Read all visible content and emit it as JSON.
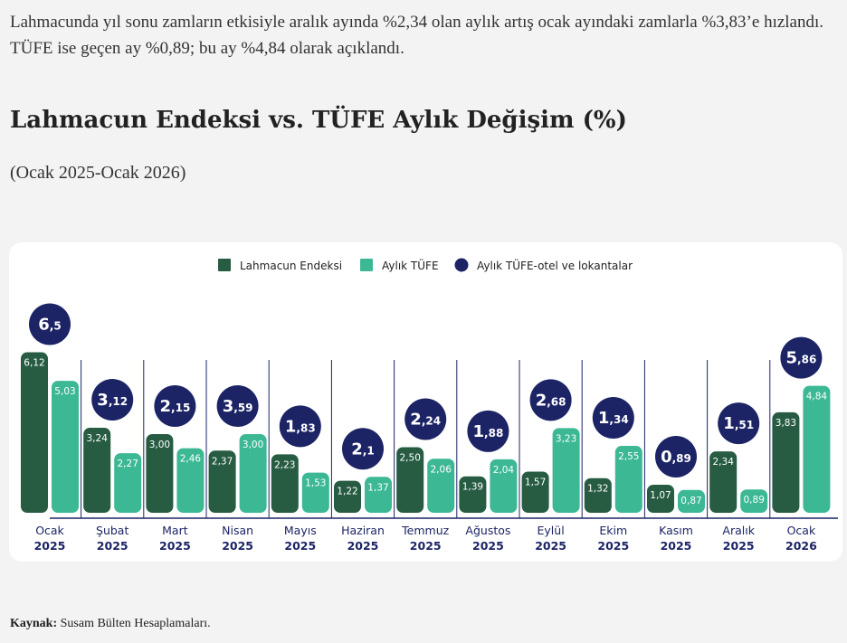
{
  "article": {
    "intro": "Lahmacunda yıl sonu zamların etkisiyle aralık ayında %2,34 olan aylık artış ocak ayındaki zamlarla %3,83’e hızlandı. TÜFE ise geçen ay %0,89; bu ay %4,84 olarak açıklandı.",
    "title": "Lahmacun Endeksi vs. TÜFE Aylık Değişim (%)",
    "subtitle": "(Ocak 2025-Ocak 2026)",
    "source_label": "Kaynak:",
    "source_text": "Susam Bülten Hesaplamaları."
  },
  "chart_data": {
    "type": "bar",
    "legend_position": "top-center",
    "grid": false,
    "categories": [
      [
        "Ocak",
        "2025"
      ],
      [
        "Şubat",
        "2025"
      ],
      [
        "Mart",
        "2025"
      ],
      [
        "Nisan",
        "2025"
      ],
      [
        "Mayıs",
        "2025"
      ],
      [
        "Haziran",
        "2025"
      ],
      [
        "Temmuz",
        "2025"
      ],
      [
        "Ağustos",
        "2025"
      ],
      [
        "Eylül",
        "2025"
      ],
      [
        "Ekim",
        "2025"
      ],
      [
        "Kasım",
        "2025"
      ],
      [
        "Aralık",
        "2025"
      ],
      [
        "Ocak",
        "2026"
      ]
    ],
    "series": [
      {
        "name": "Lahmacun Endeksi",
        "color": "#275c43",
        "values": [
          6.12,
          3.24,
          3.0,
          2.37,
          2.23,
          1.22,
          2.5,
          1.39,
          1.57,
          1.32,
          1.07,
          2.34,
          3.83
        ],
        "labels": [
          "6,12",
          "3,24",
          "3,00",
          "2,37",
          "2,23",
          "1,22",
          "2,50",
          "1,39",
          "1,57",
          "1,32",
          "1,07",
          "2,34",
          "3,83"
        ]
      },
      {
        "name": "Aylık TÜFE",
        "color": "#3cb895",
        "values": [
          5.03,
          2.27,
          2.46,
          3.0,
          1.53,
          1.37,
          2.06,
          2.04,
          3.23,
          2.55,
          0.87,
          0.89,
          4.84
        ],
        "labels": [
          "5,03",
          "2,27",
          "2,46",
          "3,00",
          "1,53",
          "1,37",
          "2,06",
          "2,04",
          "3,23",
          "2,55",
          "0,87",
          "0,89",
          "4,84"
        ]
      },
      {
        "name": "Aylık TÜFE-otel ve lokantalar",
        "color": "#1c2466",
        "marker": "circle",
        "values": [
          6.5,
          3.12,
          2.15,
          3.59,
          1.83,
          2.1,
          2.24,
          1.88,
          2.68,
          1.34,
          0.89,
          1.51,
          5.86
        ],
        "labels_int": [
          "6",
          "3",
          "2",
          "3",
          "1",
          "2",
          "2",
          "1",
          "2",
          "1",
          "0",
          "1",
          "5"
        ],
        "labels_dec": [
          ",5",
          ",12",
          ",15",
          ",59",
          ",83",
          ",1",
          ",24",
          ",88",
          ",68",
          ",34",
          ",89",
          ",51",
          ",86"
        ]
      }
    ]
  }
}
